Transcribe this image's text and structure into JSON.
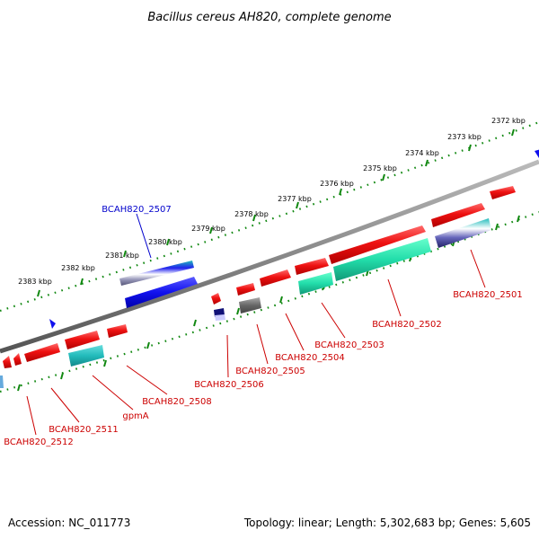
{
  "title": "Bacillus cereus AH820, complete genome",
  "accession_label": "Accession: NC_011773",
  "topology_label": "Topology: linear; Length: 5,302,683 bp; Genes: 5,605",
  "kbp_ticks": [
    "2372 kbp",
    "2373 kbp",
    "2374 kbp",
    "2375 kbp",
    "2376 kbp",
    "2377 kbp",
    "2378 kbp",
    "2379 kbp",
    "2380 kbp",
    "2381 kbp",
    "2382 kbp",
    "2383 kbp"
  ],
  "gene_labels": {
    "g2507": "BCAH820_2507",
    "g2501": "BCAH820_2501",
    "g2502": "BCAH820_2502",
    "g2503": "BCAH820_2503",
    "g2504": "BCAH820_2504",
    "g2505": "BCAH820_2505",
    "g2506": "BCAH820_2506",
    "g2508": "BCAH820_2508",
    "gpmA": "gpmA",
    "g2511": "BCAH820_2511",
    "g2512": "BCAH820_2512"
  },
  "colors": {
    "forward_label": "#0000cc",
    "reverse_label": "#cc0000",
    "gene_red": "#ee1111",
    "gene_blue": "#1111ee",
    "cyan": "#22bbbb",
    "teal": "#22ddaa",
    "backbone": "#888888",
    "tick_green": "#118811"
  }
}
